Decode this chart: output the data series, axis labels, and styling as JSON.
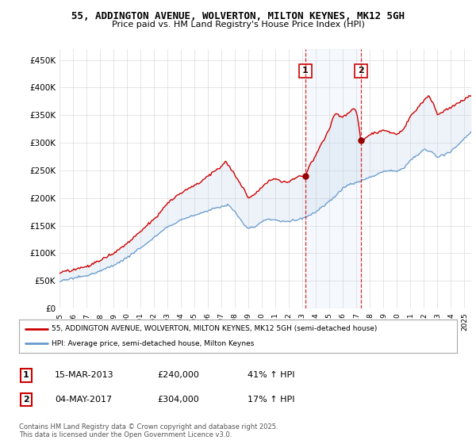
{
  "title_line1": "55, ADDINGTON AVENUE, WOLVERTON, MILTON KEYNES, MK12 5GH",
  "title_line2": "Price paid vs. HM Land Registry's House Price Index (HPI)",
  "ylim": [
    0,
    470000
  ],
  "yticks": [
    0,
    50000,
    100000,
    150000,
    200000,
    250000,
    300000,
    350000,
    400000,
    450000
  ],
  "ytick_labels": [
    "£0",
    "£50K",
    "£100K",
    "£150K",
    "£200K",
    "£250K",
    "£300K",
    "£350K",
    "£400K",
    "£450K"
  ],
  "legend_label_red": "55, ADDINGTON AVENUE, WOLVERTON, MILTON KEYNES, MK12 5GH (semi-detached house)",
  "legend_label_blue": "HPI: Average price, semi-detached house, Milton Keynes",
  "annotation1_date": "15-MAR-2013",
  "annotation1_price": "£240,000",
  "annotation1_hpi": "41% ↑ HPI",
  "annotation2_date": "04-MAY-2017",
  "annotation2_price": "£304,000",
  "annotation2_hpi": "17% ↑ HPI",
  "footnote": "Contains HM Land Registry data © Crown copyright and database right 2025.\nThis data is licensed under the Open Government Licence v3.0.",
  "red_color": "#cc0000",
  "blue_color": "#6699cc",
  "shade_color": "#ddeeff",
  "purchase1_year": 2013.21,
  "purchase1_price": 240000,
  "purchase2_year": 2017.34,
  "purchase2_price": 304000,
  "background_color": "#ffffff",
  "grid_color": "#cccccc"
}
